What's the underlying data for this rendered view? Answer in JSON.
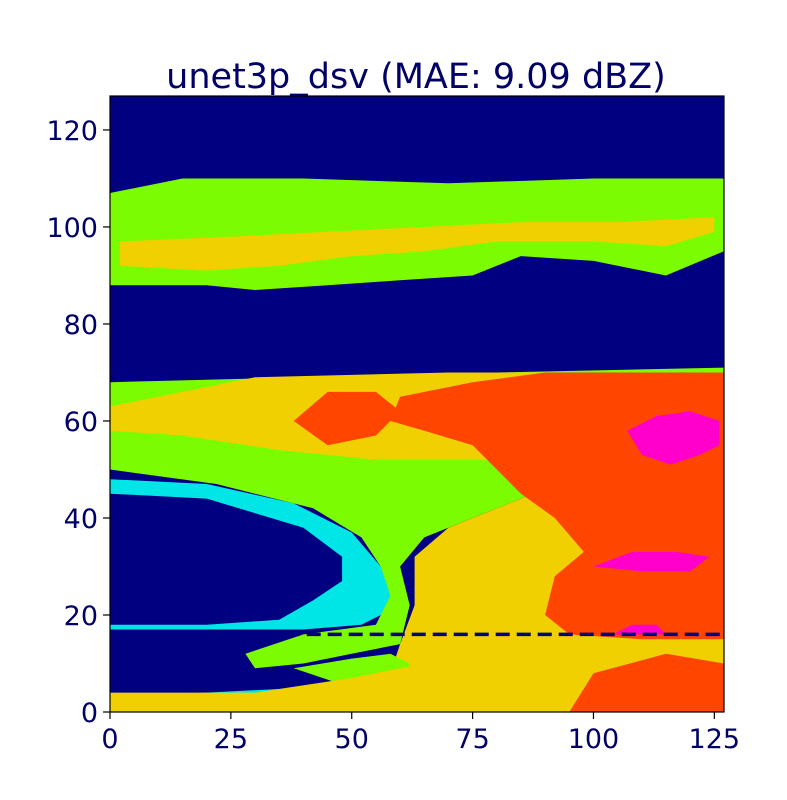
{
  "chart_data": {
    "type": "heatmap",
    "title": "unet3p_dsv (MAE: 9.09 dBZ)",
    "xlim": [
      0,
      127
    ],
    "ylim": [
      0,
      127
    ],
    "x_ticks": [
      0,
      25,
      50,
      75,
      100,
      125
    ],
    "y_ticks": [
      0,
      20,
      40,
      60,
      80,
      100,
      120
    ],
    "x_tick_labels": [
      "0",
      "25",
      "50",
      "75",
      "100",
      "125"
    ],
    "y_tick_labels": [
      "0",
      "20",
      "40",
      "60",
      "80",
      "100",
      "120"
    ],
    "background_color": "#000080",
    "text_color": "#000066",
    "colormap": [
      "#000080",
      "#00e6e6",
      "#7cfc00",
      "#f0d000",
      "#ff4500",
      "#ff00cc"
    ],
    "dashed_line": {
      "y": 16,
      "x_start": 32,
      "x_end": 127,
      "color": "#000080"
    },
    "regions": [
      {
        "name": "upper-band",
        "level": 2,
        "polygon": [
          [
            0,
            88
          ],
          [
            20,
            88
          ],
          [
            30,
            87
          ],
          [
            45,
            88
          ],
          [
            60,
            89
          ],
          [
            75,
            90
          ],
          [
            85,
            94
          ],
          [
            100,
            93
          ],
          [
            115,
            90
          ],
          [
            127,
            95
          ],
          [
            127,
            110
          ],
          [
            100,
            110
          ],
          [
            70,
            109
          ],
          [
            40,
            110
          ],
          [
            15,
            110
          ],
          [
            0,
            107
          ]
        ]
      },
      {
        "name": "upper-band-core",
        "level": 3,
        "polygon": [
          [
            2,
            92
          ],
          [
            20,
            91
          ],
          [
            35,
            92
          ],
          [
            50,
            94
          ],
          [
            65,
            95
          ],
          [
            80,
            97
          ],
          [
            100,
            97
          ],
          [
            115,
            96
          ],
          [
            125,
            99
          ],
          [
            125,
            102
          ],
          [
            105,
            101
          ],
          [
            85,
            101
          ],
          [
            65,
            100
          ],
          [
            45,
            99
          ],
          [
            25,
            98
          ],
          [
            2,
            97
          ]
        ]
      },
      {
        "name": "mid-cyan-edge",
        "level": 1,
        "polygon": [
          [
            0,
            48
          ],
          [
            20,
            47
          ],
          [
            38,
            43
          ],
          [
            50,
            37
          ],
          [
            56,
            30
          ],
          [
            58,
            28
          ],
          [
            60,
            22
          ],
          [
            52,
            18
          ],
          [
            40,
            17
          ],
          [
            20,
            17
          ],
          [
            0,
            17
          ],
          [
            0,
            18
          ],
          [
            20,
            18
          ],
          [
            35,
            19
          ],
          [
            42,
            23
          ],
          [
            48,
            27
          ],
          [
            48,
            32
          ],
          [
            40,
            38
          ],
          [
            20,
            44
          ],
          [
            0,
            45
          ]
        ]
      },
      {
        "name": "mid-green",
        "level": 2,
        "polygon": [
          [
            0,
            68
          ],
          [
            40,
            69
          ],
          [
            80,
            70
          ],
          [
            127,
            71
          ],
          [
            127,
            50
          ],
          [
            95,
            48
          ],
          [
            80,
            42
          ],
          [
            65,
            36
          ],
          [
            60,
            30
          ],
          [
            62,
            22
          ],
          [
            60,
            14
          ],
          [
            50,
            12
          ],
          [
            40,
            10
          ],
          [
            30,
            9
          ],
          [
            28,
            12
          ],
          [
            40,
            16
          ],
          [
            55,
            18
          ],
          [
            58,
            24
          ],
          [
            56,
            30
          ],
          [
            52,
            36
          ],
          [
            42,
            42
          ],
          [
            22,
            47
          ],
          [
            0,
            50
          ]
        ]
      },
      {
        "name": "mid-yellow",
        "level": 3,
        "polygon": [
          [
            0,
            63
          ],
          [
            30,
            69
          ],
          [
            70,
            70
          ],
          [
            127,
            70
          ],
          [
            127,
            5
          ],
          [
            70,
            5
          ],
          [
            58,
            8
          ],
          [
            60,
            14
          ],
          [
            63,
            22
          ],
          [
            63,
            32
          ],
          [
            70,
            38
          ],
          [
            85,
            44
          ],
          [
            95,
            48
          ],
          [
            80,
            52
          ],
          [
            55,
            52
          ],
          [
            35,
            54
          ],
          [
            15,
            57
          ],
          [
            0,
            58
          ]
        ]
      },
      {
        "name": "red-core",
        "level": 4,
        "polygon": [
          [
            60,
            65
          ],
          [
            75,
            68
          ],
          [
            90,
            70
          ],
          [
            127,
            70
          ],
          [
            127,
            15
          ],
          [
            110,
            15
          ],
          [
            95,
            16
          ],
          [
            90,
            20
          ],
          [
            92,
            28
          ],
          [
            98,
            33
          ],
          [
            92,
            40
          ],
          [
            85,
            45
          ],
          [
            80,
            50
          ],
          [
            75,
            55
          ],
          [
            65,
            58
          ],
          [
            58,
            60
          ]
        ]
      },
      {
        "name": "red-upper-left",
        "level": 4,
        "polygon": [
          [
            38,
            60
          ],
          [
            45,
            66
          ],
          [
            55,
            66
          ],
          [
            60,
            62
          ],
          [
            55,
            57
          ],
          [
            45,
            55
          ]
        ]
      },
      {
        "name": "magenta-1",
        "level": 5,
        "polygon": [
          [
            107,
            58
          ],
          [
            113,
            61
          ],
          [
            120,
            62
          ],
          [
            126,
            60
          ],
          [
            126,
            55
          ],
          [
            122,
            53
          ],
          [
            116,
            51
          ],
          [
            110,
            53
          ]
        ]
      },
      {
        "name": "magenta-2",
        "level": 5,
        "polygon": [
          [
            100,
            30
          ],
          [
            108,
            33
          ],
          [
            117,
            33
          ],
          [
            124,
            32
          ],
          [
            120,
            29
          ],
          [
            110,
            29
          ]
        ]
      },
      {
        "name": "magenta-3",
        "level": 5,
        "polygon": [
          [
            104,
            16
          ],
          [
            108,
            18
          ],
          [
            113,
            18
          ],
          [
            115,
            16
          ]
        ]
      },
      {
        "name": "lower-cyan",
        "level": 1,
        "polygon": [
          [
            0,
            3
          ],
          [
            20,
            4
          ],
          [
            40,
            5
          ],
          [
            55,
            6
          ],
          [
            60,
            6
          ],
          [
            60,
            4
          ],
          [
            30,
            3
          ],
          [
            0,
            3
          ]
        ]
      },
      {
        "name": "lower-green",
        "level": 2,
        "polygon": [
          [
            38,
            9
          ],
          [
            50,
            11
          ],
          [
            58,
            12
          ],
          [
            62,
            10
          ],
          [
            62,
            5
          ],
          [
            50,
            5
          ]
        ]
      },
      {
        "name": "lower-yellow",
        "level": 3,
        "polygon": [
          [
            0,
            0
          ],
          [
            127,
            0
          ],
          [
            127,
            14
          ],
          [
            105,
            14
          ],
          [
            80,
            12
          ],
          [
            60,
            9
          ],
          [
            50,
            7
          ],
          [
            30,
            4
          ],
          [
            0,
            4
          ]
        ]
      },
      {
        "name": "lower-orange",
        "level": 4,
        "polygon": [
          [
            95,
            0
          ],
          [
            127,
            0
          ],
          [
            127,
            10
          ],
          [
            115,
            12
          ],
          [
            100,
            8
          ]
        ]
      }
    ]
  }
}
